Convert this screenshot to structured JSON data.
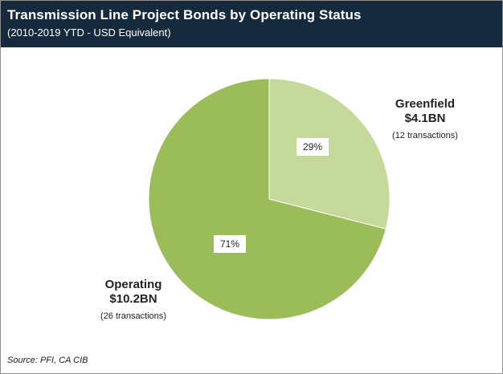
{
  "header": {
    "title": "Transmission Line Project Bonds by Operating Status",
    "subtitle": "(2010-2019 YTD - USD Equivalent)"
  },
  "footer": {
    "source": "Source: PFI, CA CIB"
  },
  "chart_data": {
    "type": "pie",
    "title": "Transmission Line Project Bonds by Operating Status",
    "subtitle": "(2010-2019 YTD - USD Equivalent)",
    "slices": [
      {
        "name": "Greenfield",
        "value": 4.1,
        "amount_label": "$4.1BN",
        "percent": 29,
        "percent_label": "29%",
        "transactions_label": "(12 transactions)",
        "color": "#c5d99b"
      },
      {
        "name": "Operating",
        "value": 10.2,
        "amount_label": "$10.2BN",
        "percent": 71,
        "percent_label": "71%",
        "transactions_label": "(26 transactions)",
        "color": "#9bbd59"
      }
    ],
    "source": "Source: PFI, CA CIB"
  }
}
